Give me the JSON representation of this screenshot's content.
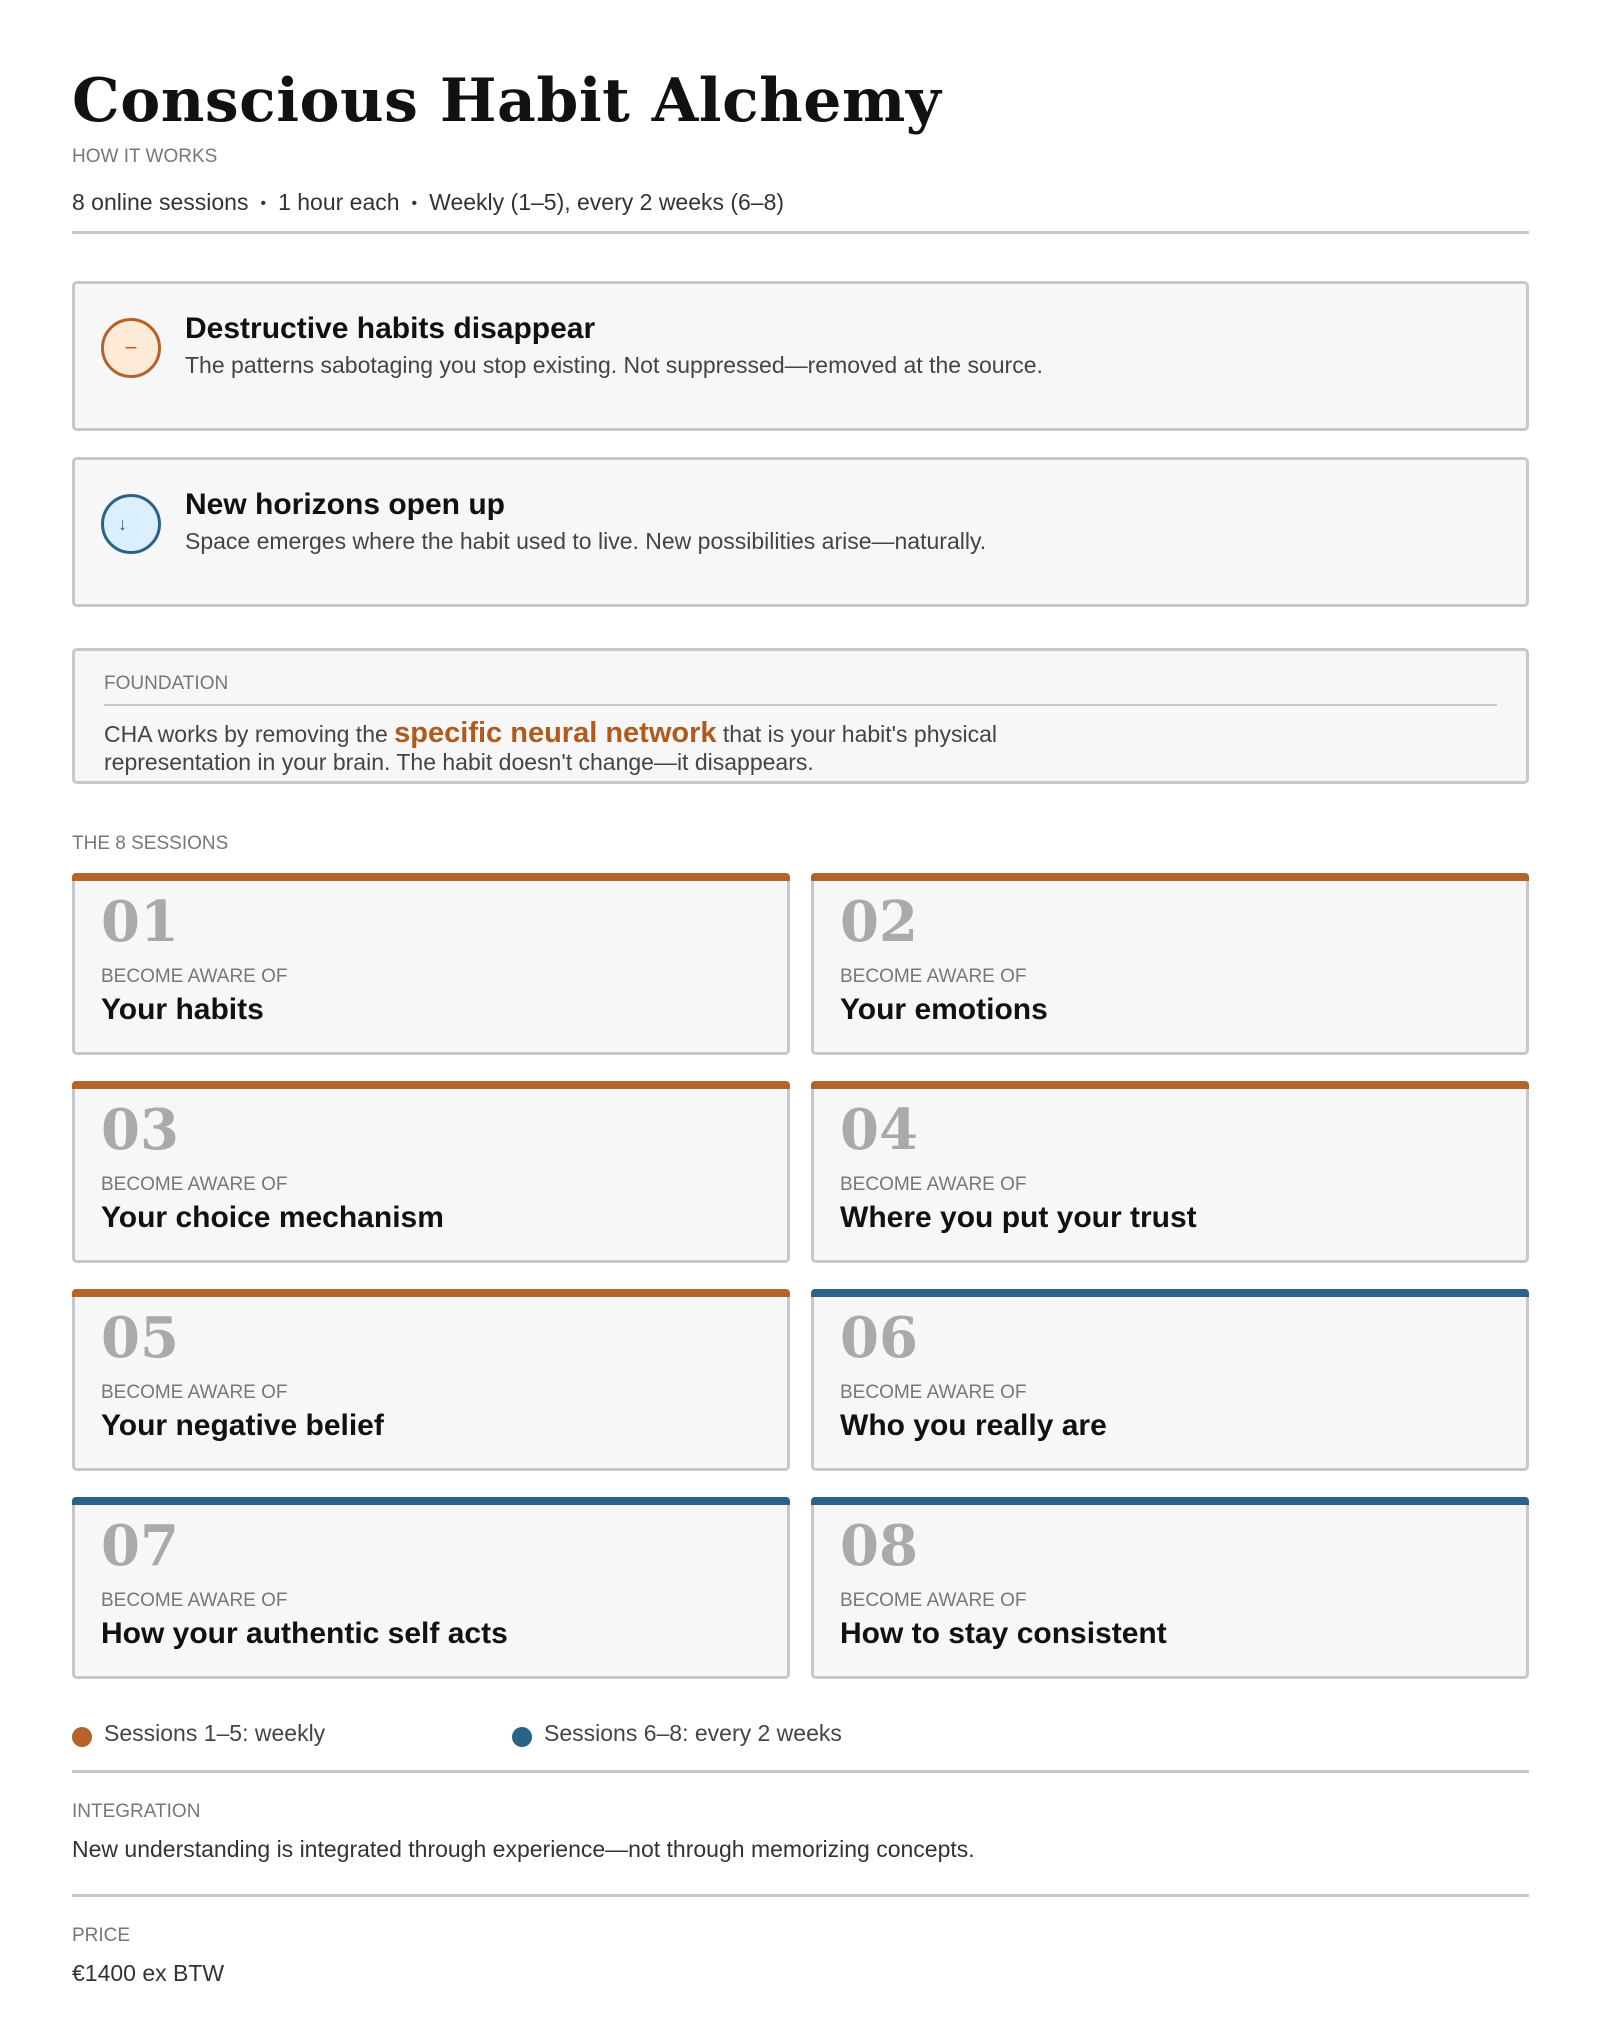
{
  "title": "Conscious Habit Alchemy",
  "subtitle": "HOW IT WORKS",
  "meta": [
    "8 online sessions",
    "1 hour each",
    "Weekly (1–5), every 2 weeks (6–8)"
  ],
  "meta_separator": "•",
  "colors": {
    "orange": "#b5632a",
    "blue": "#2b6287"
  },
  "benefits": [
    {
      "icon": "minus-icon",
      "glyph": "−",
      "title": "Destructive habits disappear",
      "desc": "The patterns sabotaging you stop existing. Not suppressed—removed at the source."
    },
    {
      "icon": "arrow-down-icon",
      "glyph": "↓",
      "title": "New horizons open up",
      "desc": "Space emerges where the habit used to live. New possibilities arise—naturally."
    }
  ],
  "foundation": {
    "label": "FOUNDATION",
    "text_before": "CHA works by removing the ",
    "highlight": "specific neural network",
    "text_after": " that is your habit's physical representation in your brain. The habit doesn't change—it disappears."
  },
  "sessions_label": "THE 8 SESSIONS",
  "sessions": [
    {
      "num": "01",
      "pre": "BECOME AWARE OF",
      "title": "Your habits"
    },
    {
      "num": "02",
      "pre": "BECOME AWARE OF",
      "title": "Your emotions"
    },
    {
      "num": "03",
      "pre": "BECOME AWARE OF",
      "title": "Your choice mechanism"
    },
    {
      "num": "04",
      "pre": "BECOME AWARE OF",
      "title": "Where you put your trust"
    },
    {
      "num": "05",
      "pre": "BECOME AWARE OF",
      "title": "Your negative belief"
    },
    {
      "num": "06",
      "pre": "BECOME AWARE OF",
      "title": "Who you really are"
    },
    {
      "num": "07",
      "pre": "BECOME AWARE OF",
      "title": "How your authentic self acts"
    },
    {
      "num": "08",
      "pre": "BECOME AWARE OF",
      "title": "How to stay consistent"
    }
  ],
  "legend": [
    "Sessions 1–5: weekly",
    "Sessions 6–8: every 2 weeks"
  ],
  "integration": {
    "label": "INTEGRATION",
    "text": "New understanding is integrated through experience—not through memorizing concepts."
  },
  "price": {
    "label": "PRICE",
    "value": "€1400 ex BTW"
  }
}
